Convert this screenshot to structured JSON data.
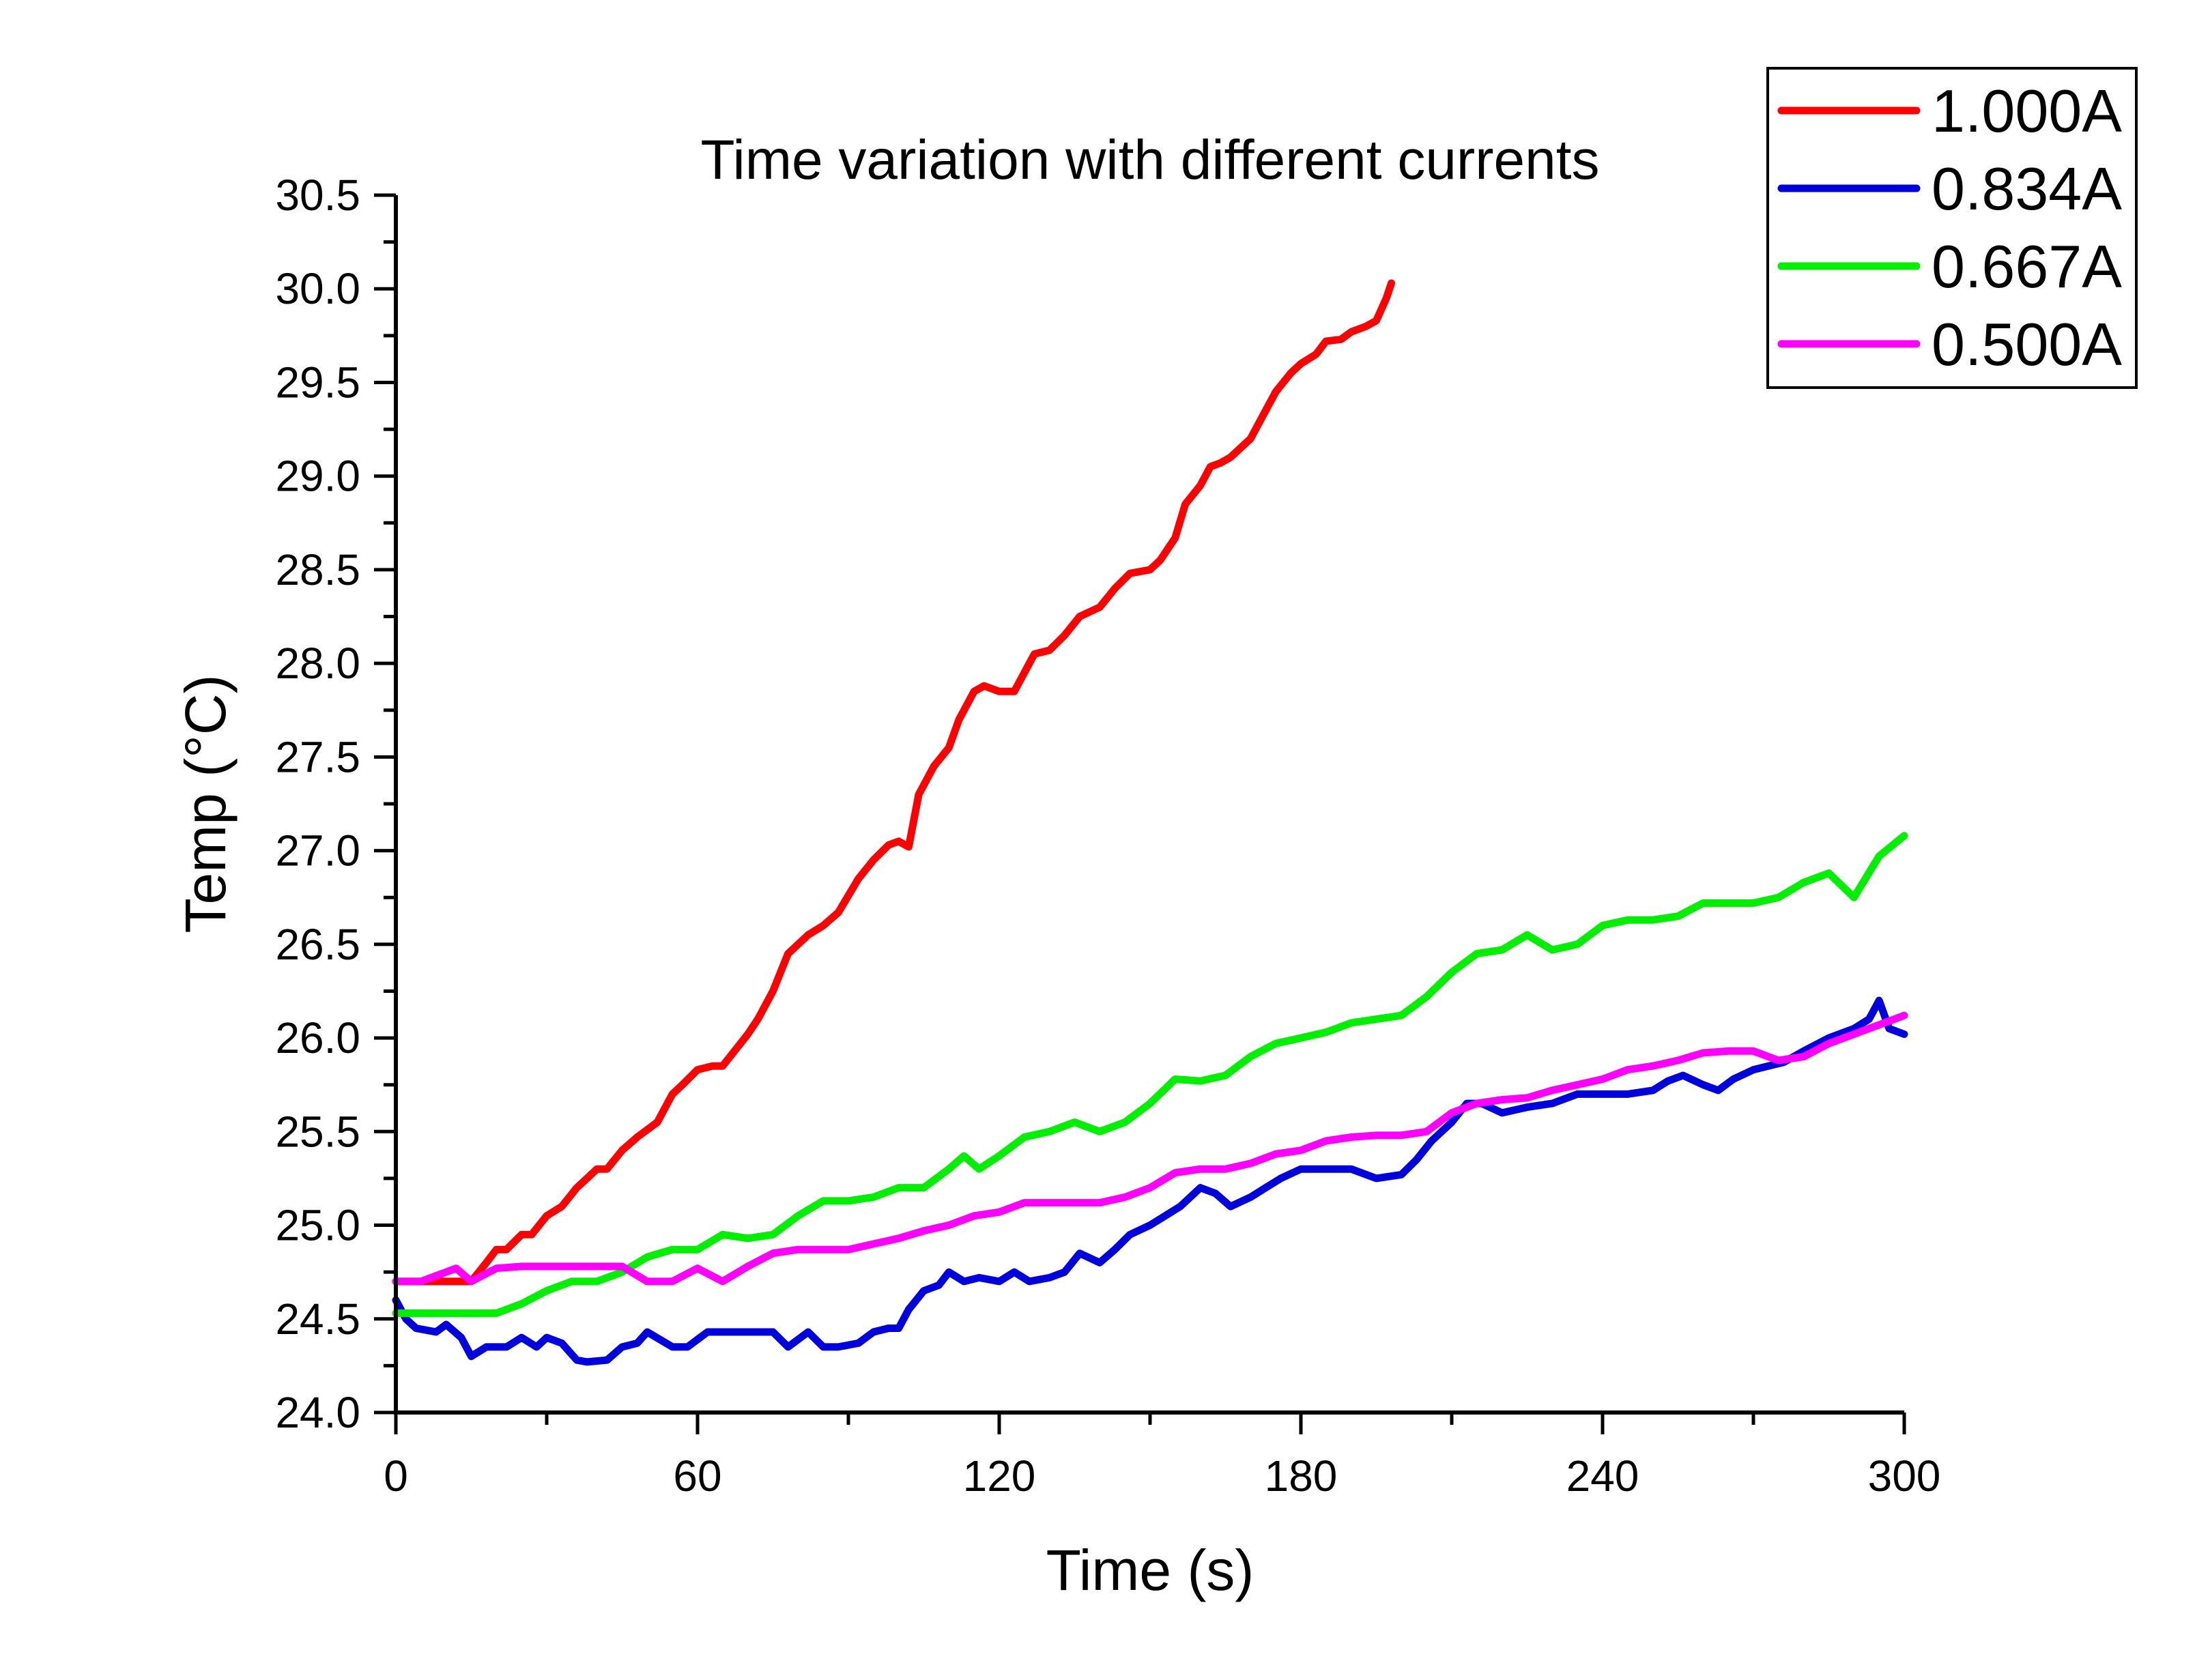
{
  "chart_data": {
    "type": "line",
    "title": "Time variation with different currents",
    "xlabel": "Time (s)",
    "ylabel": "Temp (°C)",
    "xlim": [
      0,
      300
    ],
    "ylim": [
      24.0,
      30.5
    ],
    "xticks": [
      "0",
      "60",
      "120",
      "180",
      "240",
      "300"
    ],
    "yticks": [
      "24.0",
      "24.5",
      "25.0",
      "25.5",
      "26.0",
      "26.5",
      "27.0",
      "27.5",
      "28.0",
      "28.5",
      "29.0",
      "29.5",
      "30.0",
      "30.5"
    ],
    "grid": false,
    "legend_position": "top-right",
    "series": [
      {
        "name": "1.000A",
        "color": "#ff0000",
        "x": [
          0,
          2,
          10,
          15,
          18,
          20,
          22,
          25,
          27,
          30,
          33,
          36,
          40,
          42,
          45,
          48,
          52,
          55,
          57,
          60,
          63,
          65,
          70,
          72,
          75,
          78,
          82,
          85,
          88,
          92,
          95,
          98,
          100,
          102,
          104,
          107,
          110,
          112,
          115,
          117,
          120,
          123,
          125,
          127,
          130,
          133,
          136,
          140,
          143,
          146,
          150,
          152,
          155,
          157,
          160,
          162,
          164,
          166,
          170,
          173,
          175,
          178,
          180,
          183,
          185,
          188,
          190,
          193,
          195,
          197,
          198
        ],
        "values": [
          24.7,
          24.7,
          24.7,
          24.7,
          24.8,
          24.87,
          24.87,
          24.95,
          24.95,
          25.05,
          25.1,
          25.2,
          25.3,
          25.3,
          25.4,
          25.47,
          25.55,
          25.7,
          25.75,
          25.83,
          25.85,
          25.85,
          26.02,
          26.1,
          26.25,
          26.45,
          26.55,
          26.6,
          26.67,
          26.85,
          26.95,
          27.03,
          27.05,
          27.02,
          27.3,
          27.45,
          27.55,
          27.7,
          27.85,
          27.88,
          27.85,
          27.85,
          27.95,
          28.05,
          28.07,
          28.15,
          28.25,
          28.3,
          28.4,
          28.48,
          28.5,
          28.55,
          28.67,
          28.85,
          28.95,
          29.05,
          29.07,
          29.1,
          29.2,
          29.35,
          29.45,
          29.55,
          29.6,
          29.65,
          29.72,
          29.73,
          29.77,
          29.8,
          29.83,
          29.95,
          30.03
        ]
      },
      {
        "name": "0.834A",
        "color": "#0000dd",
        "x": [
          0,
          2,
          4,
          8,
          10,
          13,
          15,
          18,
          22,
          25,
          28,
          30,
          33,
          36,
          38,
          42,
          45,
          48,
          50,
          55,
          58,
          62,
          66,
          70,
          75,
          78,
          82,
          85,
          88,
          92,
          95,
          98,
          100,
          102,
          105,
          108,
          110,
          113,
          116,
          120,
          123,
          126,
          130,
          133,
          136,
          140,
          143,
          146,
          150,
          153,
          156,
          160,
          163,
          166,
          170,
          173,
          176,
          180,
          183,
          186,
          190,
          195,
          200,
          203,
          206,
          210,
          213,
          216,
          220,
          225,
          230,
          235,
          240,
          245,
          250,
          253,
          256,
          260,
          263,
          266,
          270,
          273,
          276,
          280,
          285,
          290,
          293,
          295,
          297,
          300
        ],
        "values": [
          24.6,
          24.5,
          24.45,
          24.43,
          24.47,
          24.4,
          24.3,
          24.35,
          24.35,
          24.4,
          24.35,
          24.4,
          24.37,
          24.28,
          24.27,
          24.28,
          24.35,
          24.37,
          24.43,
          24.35,
          24.35,
          24.43,
          24.43,
          24.43,
          24.43,
          24.35,
          24.43,
          24.35,
          24.35,
          24.37,
          24.43,
          24.45,
          24.45,
          24.55,
          24.65,
          24.68,
          24.75,
          24.7,
          24.72,
          24.7,
          24.75,
          24.7,
          24.72,
          24.75,
          24.85,
          24.8,
          24.87,
          24.95,
          25.0,
          25.05,
          25.1,
          25.2,
          25.17,
          25.1,
          25.15,
          25.2,
          25.25,
          25.3,
          25.3,
          25.3,
          25.3,
          25.25,
          25.27,
          25.35,
          25.45,
          25.55,
          25.65,
          25.65,
          25.6,
          25.63,
          25.65,
          25.7,
          25.7,
          25.7,
          25.72,
          25.77,
          25.8,
          25.75,
          25.72,
          25.78,
          25.83,
          25.85,
          25.87,
          25.93,
          26.0,
          26.05,
          26.1,
          26.2,
          26.05,
          26.02
        ]
      },
      {
        "name": "0.667A",
        "color": "#00ee00",
        "x": [
          0,
          5,
          10,
          15,
          20,
          25,
          30,
          35,
          40,
          45,
          50,
          55,
          60,
          65,
          70,
          75,
          80,
          85,
          90,
          95,
          100,
          105,
          110,
          113,
          116,
          120,
          125,
          130,
          135,
          140,
          145,
          150,
          155,
          160,
          165,
          170,
          175,
          180,
          185,
          190,
          195,
          200,
          205,
          210,
          215,
          220,
          225,
          230,
          235,
          240,
          245,
          250,
          255,
          260,
          265,
          270,
          275,
          280,
          285,
          290,
          295,
          300
        ],
        "values": [
          24.53,
          24.53,
          24.53,
          24.53,
          24.53,
          24.58,
          24.65,
          24.7,
          24.7,
          24.75,
          24.83,
          24.87,
          24.87,
          24.95,
          24.93,
          24.95,
          25.05,
          25.13,
          25.13,
          25.15,
          25.2,
          25.2,
          25.3,
          25.37,
          25.3,
          25.37,
          25.47,
          25.5,
          25.55,
          25.5,
          25.55,
          25.65,
          25.78,
          25.77,
          25.8,
          25.9,
          25.97,
          26.0,
          26.03,
          26.08,
          26.1,
          26.12,
          26.22,
          26.35,
          26.45,
          26.47,
          26.55,
          26.47,
          26.5,
          26.6,
          26.63,
          26.63,
          26.65,
          26.72,
          26.72,
          26.72,
          26.75,
          26.83,
          26.88,
          26.75,
          26.97,
          27.08
        ]
      },
      {
        "name": "0.500A",
        "color": "#ff00ff",
        "x": [
          0,
          5,
          10,
          12,
          15,
          20,
          25,
          30,
          35,
          40,
          45,
          50,
          55,
          60,
          65,
          70,
          75,
          80,
          85,
          90,
          95,
          100,
          105,
          110,
          115,
          120,
          125,
          130,
          135,
          140,
          145,
          150,
          155,
          160,
          165,
          170,
          175,
          180,
          185,
          190,
          195,
          200,
          205,
          210,
          215,
          220,
          225,
          230,
          235,
          240,
          245,
          250,
          255,
          260,
          265,
          270,
          275,
          280,
          285,
          290,
          295,
          300
        ],
        "values": [
          24.7,
          24.7,
          24.75,
          24.77,
          24.7,
          24.77,
          24.78,
          24.78,
          24.78,
          24.78,
          24.78,
          24.7,
          24.7,
          24.77,
          24.7,
          24.78,
          24.85,
          24.87,
          24.87,
          24.87,
          24.9,
          24.93,
          24.97,
          25.0,
          25.05,
          25.07,
          25.12,
          25.12,
          25.12,
          25.12,
          25.15,
          25.2,
          25.28,
          25.3,
          25.3,
          25.33,
          25.38,
          25.4,
          25.45,
          25.47,
          25.48,
          25.48,
          25.5,
          25.6,
          25.65,
          25.67,
          25.68,
          25.72,
          25.75,
          25.78,
          25.83,
          25.85,
          25.88,
          25.92,
          25.93,
          25.93,
          25.88,
          25.9,
          25.97,
          26.02,
          26.07,
          26.12
        ]
      }
    ]
  }
}
